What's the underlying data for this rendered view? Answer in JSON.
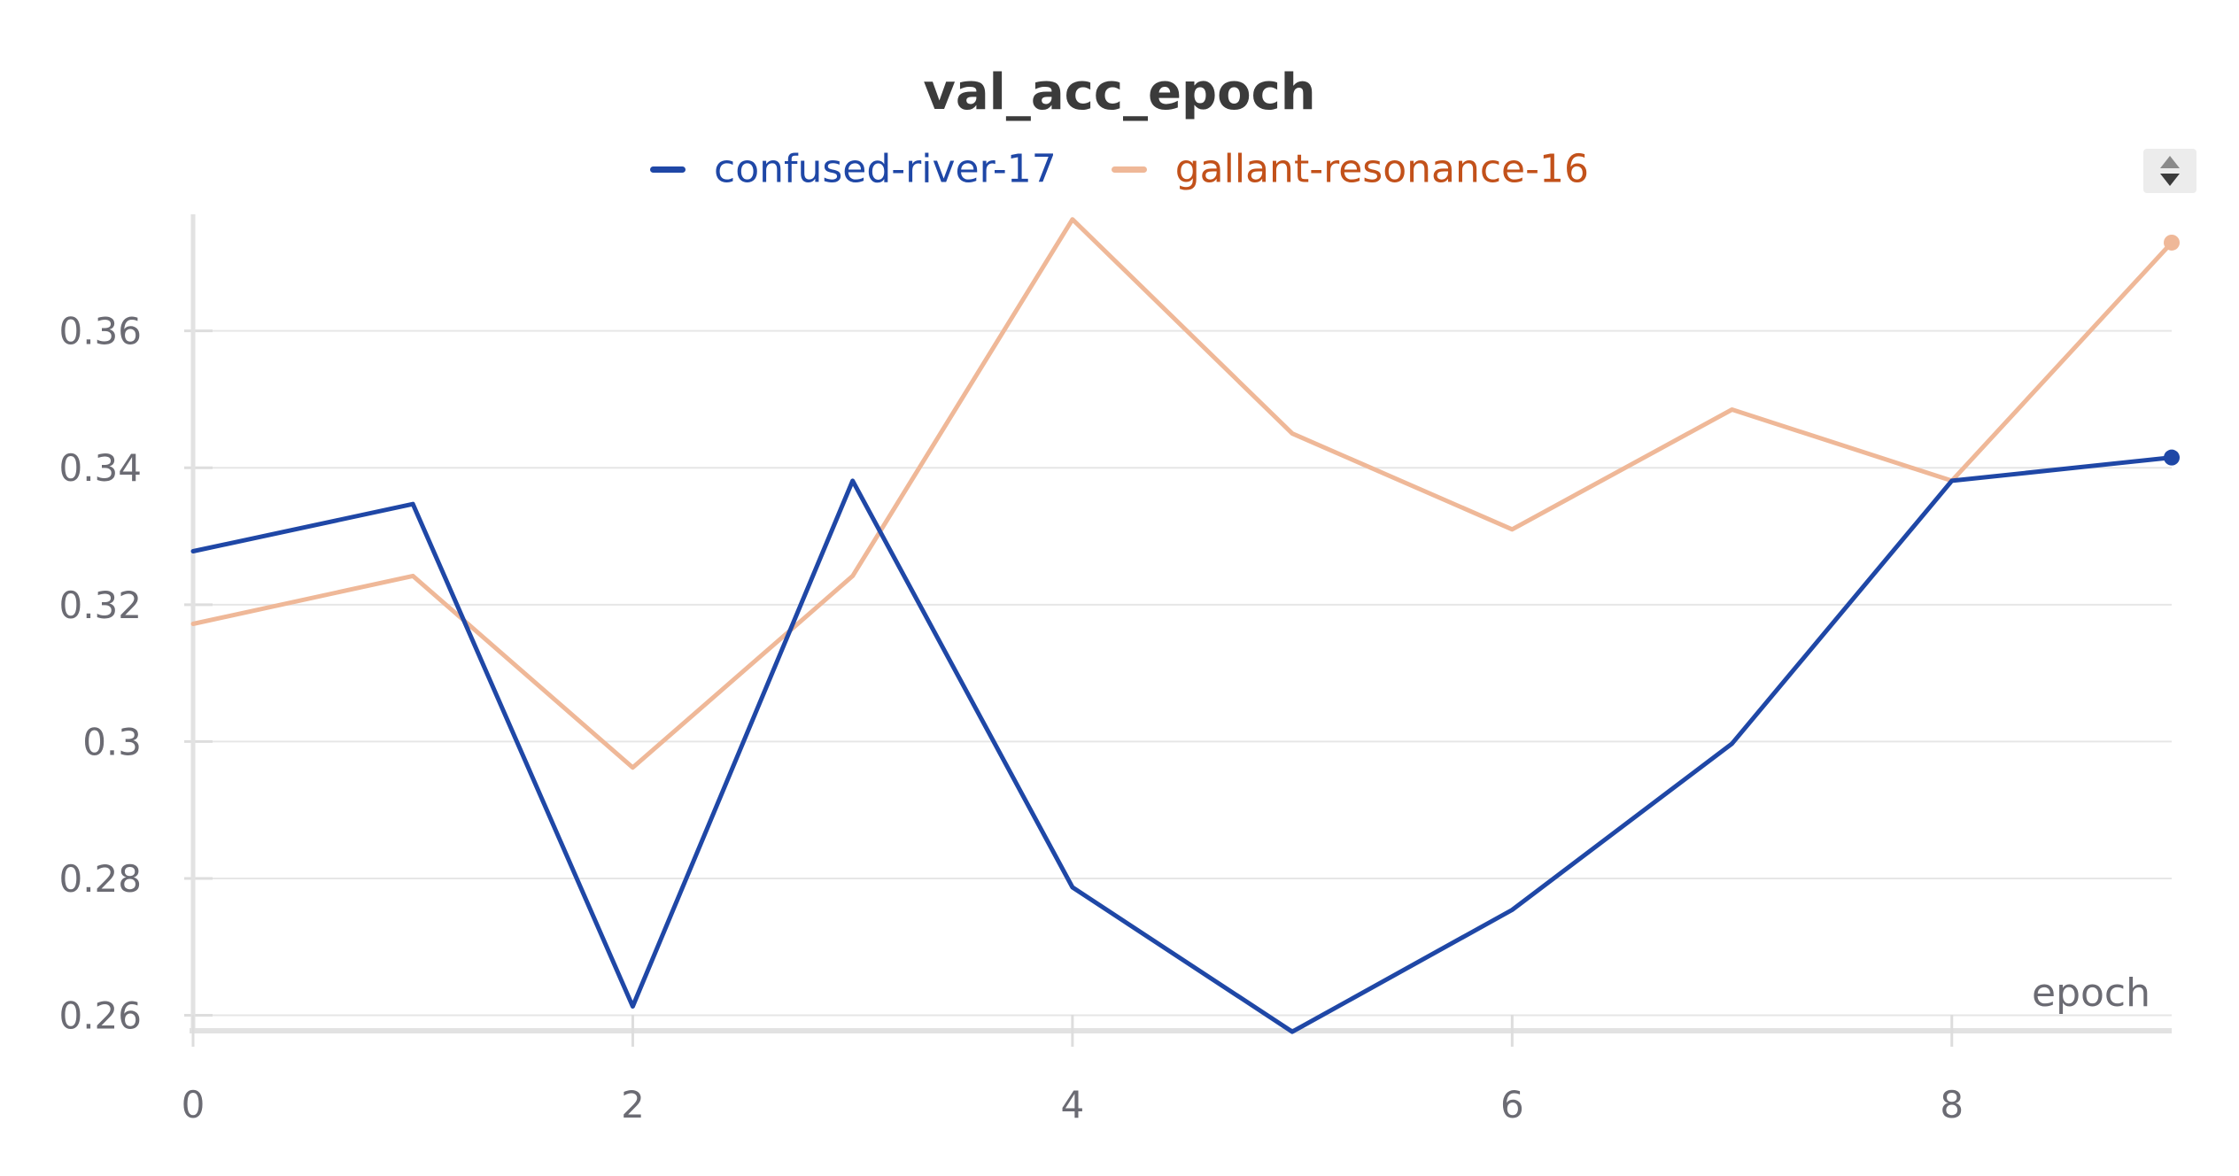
{
  "chart_data": {
    "type": "line",
    "title": "val_acc_epoch",
    "xlabel": "epoch",
    "ylabel": "",
    "x": [
      0,
      1,
      2,
      3,
      4,
      5,
      6,
      7,
      8,
      9
    ],
    "xlim": [
      0,
      9
    ],
    "ylim": [
      0.258,
      0.376
    ],
    "x_ticks": [
      0,
      2,
      4,
      6,
      8
    ],
    "x_tick_labels": [
      "0",
      "2",
      "4",
      "6",
      "8"
    ],
    "y_ticks": [
      0.26,
      0.28,
      0.3,
      0.32,
      0.34,
      0.36
    ],
    "y_tick_labels": [
      "0.26",
      "0.28",
      "0.3",
      "0.32",
      "0.34",
      "0.36"
    ],
    "grid": true,
    "legend_position": "top-center",
    "series": [
      {
        "name": "confused-river-17",
        "color": "#1f47a6",
        "values": [
          0.3278,
          0.3347,
          0.2613,
          0.3381,
          0.2787,
          0.2576,
          0.2754,
          0.2997,
          0.3381,
          0.3415
        ]
      },
      {
        "name": "gallant-resonance-16",
        "color": "#efb898",
        "label_color": "#c2511a",
        "values": [
          0.3172,
          0.3242,
          0.2962,
          0.3242,
          0.3763,
          0.345,
          0.331,
          0.3485,
          0.3381,
          0.3729
        ]
      }
    ]
  }
}
